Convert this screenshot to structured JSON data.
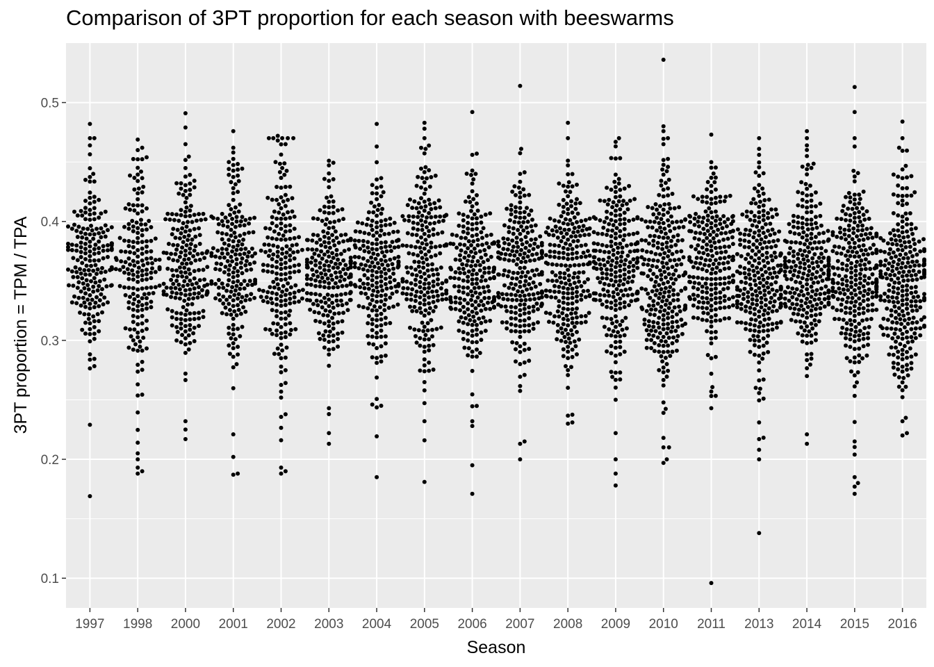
{
  "chart_data": {
    "type": "scatter",
    "subtype": "beeswarm",
    "title": "Comparison of 3PT proportion for each season with beeswarms",
    "xlabel": "Season",
    "ylabel": "3PT proportion = TPM / TPA",
    "ylim": [
      0.075,
      0.55
    ],
    "yticks": [
      0.1,
      0.2,
      0.3,
      0.4,
      0.5
    ],
    "ytick_labels": [
      "0.1",
      "0.2",
      "0.3",
      "0.4",
      "0.5"
    ],
    "grid": true,
    "legend": "none",
    "colors": {
      "panel": "#ebebeb",
      "grid": "#ffffff",
      "point": "#000000"
    },
    "categories": [
      "1997",
      "1998",
      "2000",
      "2001",
      "2002",
      "2003",
      "2004",
      "2005",
      "2006",
      "2007",
      "2008",
      "2009",
      "2010",
      "2011",
      "2013",
      "2014",
      "2015",
      "2016"
    ],
    "series": [
      {
        "season": "1997",
        "center": 0.365,
        "spread": 0.035,
        "n": 200,
        "outliers": [
          0.482,
          0.47,
          0.464,
          0.229,
          0.169
        ]
      },
      {
        "season": "1998",
        "center": 0.35,
        "spread": 0.045,
        "n": 180,
        "outliers": [
          0.46,
          0.214,
          0.205,
          0.2,
          0.193,
          0.19,
          0.188
        ]
      },
      {
        "season": "2000",
        "center": 0.36,
        "spread": 0.038,
        "n": 210,
        "outliers": [
          0.491,
          0.479,
          0.465,
          0.232,
          0.225,
          0.217
        ]
      },
      {
        "season": "2001",
        "center": 0.365,
        "spread": 0.04,
        "n": 200,
        "outliers": [
          0.476,
          0.462,
          0.458,
          0.221,
          0.202,
          0.188,
          0.187
        ]
      },
      {
        "season": "2002",
        "center": 0.36,
        "spread": 0.05,
        "n": 200,
        "outliers": [
          0.472,
          0.468,
          0.465,
          0.193,
          0.19,
          0.188
        ]
      },
      {
        "season": "2003",
        "center": 0.355,
        "spread": 0.032,
        "n": 230,
        "outliers": [
          0.451,
          0.243,
          0.238,
          0.222,
          0.213
        ]
      },
      {
        "season": "2004",
        "center": 0.355,
        "spread": 0.04,
        "n": 220,
        "outliers": [
          0.482,
          0.463,
          0.246,
          0.245,
          0.185
        ]
      },
      {
        "season": "2005",
        "center": 0.36,
        "spread": 0.042,
        "n": 230,
        "outliers": [
          0.483,
          0.478,
          0.461,
          0.232,
          0.216,
          0.181
        ]
      },
      {
        "season": "2006",
        "center": 0.355,
        "spread": 0.04,
        "n": 230,
        "outliers": [
          0.492,
          0.232,
          0.228,
          0.195,
          0.171
        ]
      },
      {
        "season": "2007",
        "center": 0.36,
        "spread": 0.04,
        "n": 240,
        "outliers": [
          0.514,
          0.461,
          0.215,
          0.213,
          0.2
        ]
      },
      {
        "season": "2008",
        "center": 0.36,
        "spread": 0.04,
        "n": 240,
        "outliers": [
          0.483,
          0.47,
          0.231,
          0.23
        ]
      },
      {
        "season": "2009",
        "center": 0.365,
        "spread": 0.042,
        "n": 250,
        "outliers": [
          0.467,
          0.222,
          0.2,
          0.188,
          0.178
        ]
      },
      {
        "season": "2010",
        "center": 0.355,
        "spread": 0.045,
        "n": 270,
        "outliers": [
          0.536,
          0.48,
          0.476,
          0.465,
          0.218,
          0.21,
          0.2,
          0.197
        ]
      },
      {
        "season": "2011",
        "center": 0.365,
        "spread": 0.038,
        "n": 240,
        "outliers": [
          0.473,
          0.257,
          0.243,
          0.096
        ]
      },
      {
        "season": "2013",
        "center": 0.355,
        "spread": 0.04,
        "n": 270,
        "outliers": [
          0.461,
          0.456,
          0.231,
          0.217,
          0.208,
          0.2,
          0.138
        ]
      },
      {
        "season": "2014",
        "center": 0.36,
        "spread": 0.038,
        "n": 270,
        "outliers": [
          0.476,
          0.47,
          0.464,
          0.455,
          0.221,
          0.213
        ]
      },
      {
        "season": "2015",
        "center": 0.355,
        "spread": 0.04,
        "n": 280,
        "outliers": [
          0.513,
          0.492,
          0.463,
          0.204,
          0.215,
          0.185,
          0.18,
          0.177,
          0.171
        ]
      },
      {
        "season": "2016",
        "center": 0.35,
        "spread": 0.042,
        "n": 280,
        "outliers": [
          0.484,
          0.47,
          0.462,
          0.232,
          0.222,
          0.22
        ]
      }
    ]
  }
}
